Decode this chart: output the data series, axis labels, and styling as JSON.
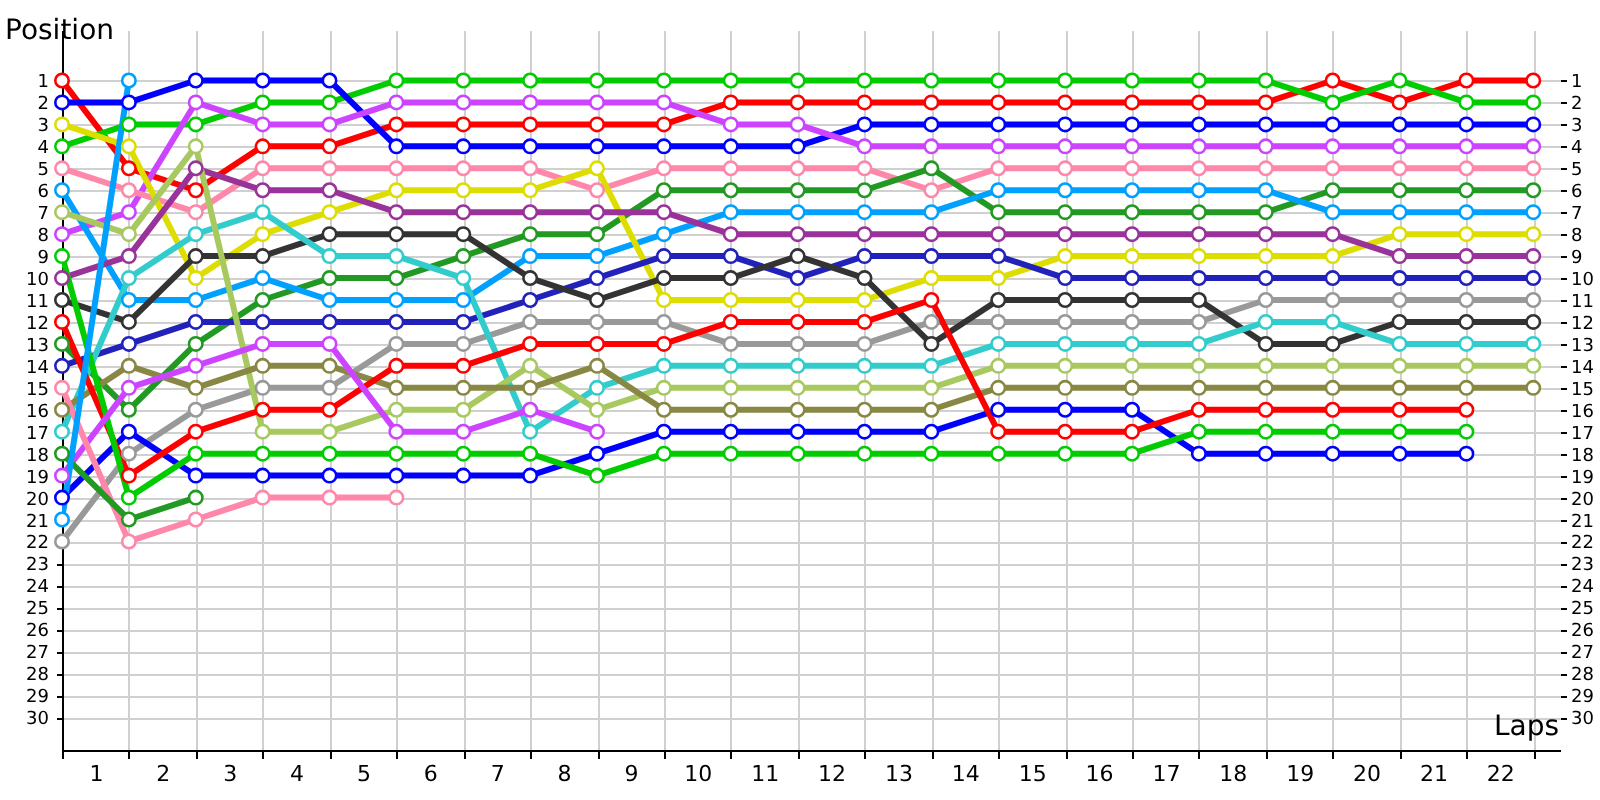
{
  "chart_data": {
    "type": "line",
    "xlabel": "Laps",
    "ylabel": "Position",
    "marker": "circle",
    "grid": true,
    "x": [
      0,
      1,
      2,
      3,
      4,
      5,
      6,
      7,
      8,
      9,
      10,
      11,
      12,
      13,
      14,
      15,
      16,
      17,
      18,
      19,
      20,
      21,
      22
    ],
    "xlim": [
      0,
      22.4
    ],
    "xticks": [
      {
        "value": 0,
        "label": null
      },
      {
        "value": 0.5,
        "label": "1"
      },
      {
        "value": 1,
        "label": null
      },
      {
        "value": 1.5,
        "label": "2"
      },
      {
        "value": 2,
        "label": null
      },
      {
        "value": 2.5,
        "label": "3"
      },
      {
        "value": 3,
        "label": null
      },
      {
        "value": 3.5,
        "label": "4"
      },
      {
        "value": 4,
        "label": null
      },
      {
        "value": 4.5,
        "label": "5"
      },
      {
        "value": 5,
        "label": null
      },
      {
        "value": 5.5,
        "label": "6"
      },
      {
        "value": 6,
        "label": null
      },
      {
        "value": 6.5,
        "label": "7"
      },
      {
        "value": 7,
        "label": null
      },
      {
        "value": 7.5,
        "label": "8"
      },
      {
        "value": 8,
        "label": null
      },
      {
        "value": 8.5,
        "label": "9"
      },
      {
        "value": 9,
        "label": null
      },
      {
        "value": 9.5,
        "label": "10"
      },
      {
        "value": 10,
        "label": null
      },
      {
        "value": 10.5,
        "label": "11"
      },
      {
        "value": 11,
        "label": null
      },
      {
        "value": 11.5,
        "label": "12"
      },
      {
        "value": 12,
        "label": null
      },
      {
        "value": 12.5,
        "label": "13"
      },
      {
        "value": 13,
        "label": null
      },
      {
        "value": 13.5,
        "label": "14"
      },
      {
        "value": 14,
        "label": null
      },
      {
        "value": 14.5,
        "label": "15"
      },
      {
        "value": 15,
        "label": null
      },
      {
        "value": 15.5,
        "label": "16"
      },
      {
        "value": 16,
        "label": null
      },
      {
        "value": 16.5,
        "label": "17"
      },
      {
        "value": 17,
        "label": null
      },
      {
        "value": 17.5,
        "label": "18"
      },
      {
        "value": 18,
        "label": null
      },
      {
        "value": 18.5,
        "label": "19"
      },
      {
        "value": 19,
        "label": null
      },
      {
        "value": 19.5,
        "label": "20"
      },
      {
        "value": 20,
        "label": null
      },
      {
        "value": 20.5,
        "label": "21"
      },
      {
        "value": 21,
        "label": null
      },
      {
        "value": 21.5,
        "label": "22"
      },
      {
        "value": 22,
        "label": null
      }
    ],
    "ylim": [
      31.5,
      -1.3
    ],
    "yticks": [
      1,
      2,
      3,
      4,
      5,
      6,
      7,
      8,
      9,
      10,
      11,
      12,
      13,
      14,
      15,
      16,
      17,
      18,
      19,
      20,
      21,
      22,
      23,
      24,
      25,
      26,
      27,
      28,
      29,
      30
    ],
    "y2lim": [
      31.5,
      -1.3
    ],
    "y2ticks": [
      1,
      2,
      3,
      4,
      5,
      6,
      7,
      8,
      9,
      10,
      11,
      12,
      13,
      14,
      15,
      16,
      17,
      18,
      19,
      20,
      21,
      22,
      23,
      24,
      25,
      26,
      27,
      28,
      29,
      30
    ],
    "series": [
      {
        "color": "#ff0000",
        "values": [
          1,
          5,
          6,
          4,
          4,
          3,
          3,
          3,
          3,
          3,
          2,
          2,
          2,
          2,
          2,
          2,
          2,
          2,
          2,
          1,
          2,
          1,
          1
        ]
      },
      {
        "color": "#00cc00",
        "values": [
          4,
          3,
          3,
          2,
          2,
          1,
          1,
          1,
          1,
          1,
          1,
          1,
          1,
          1,
          1,
          1,
          1,
          1,
          1,
          2,
          1,
          2,
          2
        ]
      },
      {
        "color": "#0000ff",
        "values": [
          2,
          2,
          1,
          1,
          1,
          4,
          4,
          4,
          4,
          4,
          4,
          4,
          3,
          3,
          3,
          3,
          3,
          3,
          3,
          3,
          3,
          3,
          3
        ]
      },
      {
        "color": "#cc44ff",
        "values": [
          8,
          7,
          2,
          3,
          3,
          2,
          2,
          2,
          2,
          2,
          3,
          3,
          4,
          4,
          4,
          4,
          4,
          4,
          4,
          4,
          4,
          4,
          4
        ]
      },
      {
        "color": "#ff88aa",
        "values": [
          5,
          6,
          7,
          5,
          5,
          5,
          5,
          5,
          6,
          5,
          5,
          5,
          5,
          6,
          5,
          5,
          5,
          5,
          5,
          5,
          5,
          5,
          5
        ]
      },
      {
        "color": "#229922",
        "values": [
          13,
          16,
          13,
          11,
          10,
          10,
          9,
          8,
          8,
          6,
          6,
          6,
          6,
          5,
          7,
          7,
          7,
          7,
          7,
          6,
          6,
          6,
          6
        ]
      },
      {
        "color": "#00a0ff",
        "values": [
          6,
          11,
          11,
          10,
          11,
          11,
          11,
          9,
          9,
          8,
          7,
          7,
          7,
          7,
          6,
          6,
          6,
          6,
          6,
          7,
          7,
          7,
          7
        ]
      },
      {
        "color": "#dddd00",
        "values": [
          3,
          4,
          10,
          8,
          7,
          6,
          6,
          6,
          5,
          11,
          11,
          11,
          11,
          10,
          10,
          9,
          9,
          9,
          9,
          9,
          8,
          8,
          8
        ]
      },
      {
        "color": "#993399",
        "values": [
          10,
          9,
          5,
          6,
          6,
          7,
          7,
          7,
          7,
          7,
          8,
          8,
          8,
          8,
          8,
          8,
          8,
          8,
          8,
          8,
          9,
          9,
          9
        ]
      },
      {
        "color": "#2222bb",
        "values": [
          14,
          13,
          12,
          12,
          12,
          12,
          12,
          11,
          10,
          9,
          9,
          10,
          9,
          9,
          9,
          10,
          10,
          10,
          10,
          10,
          10,
          10,
          10
        ]
      },
      {
        "color": "#999999",
        "values": [
          22,
          18,
          16,
          15,
          15,
          13,
          13,
          12,
          12,
          12,
          13,
          13,
          13,
          12,
          12,
          12,
          12,
          12,
          11,
          11,
          11,
          11,
          11
        ]
      },
      {
        "color": "#333333",
        "values": [
          11,
          12,
          9,
          9,
          8,
          8,
          8,
          10,
          11,
          10,
          10,
          9,
          10,
          13,
          11,
          11,
          11,
          11,
          13,
          13,
          12,
          12,
          12
        ]
      },
      {
        "color": "#33cccc",
        "values": [
          17,
          10,
          8,
          7,
          9,
          9,
          10,
          17,
          15,
          14,
          14,
          14,
          14,
          14,
          13,
          13,
          13,
          13,
          12,
          12,
          13,
          13,
          13
        ]
      },
      {
        "color": "#a8c860",
        "values": [
          7,
          8,
          4,
          17,
          17,
          16,
          16,
          14,
          16,
          15,
          15,
          15,
          15,
          15,
          14,
          14,
          14,
          14,
          14,
          14,
          14,
          14,
          14
        ]
      },
      {
        "color": "#888844",
        "values": [
          16,
          14,
          15,
          14,
          14,
          15,
          15,
          15,
          14,
          16,
          16,
          16,
          16,
          16,
          15,
          15,
          15,
          15,
          15,
          15,
          15,
          15,
          15
        ]
      },
      {
        "color": "#0000ff",
        "values": [
          20,
          17,
          19,
          19,
          19,
          19,
          19,
          19,
          18,
          17,
          17,
          17,
          17,
          17,
          16,
          16,
          16,
          18,
          18,
          18,
          18,
          18,
          null
        ]
      },
      {
        "color": "#ff0000",
        "values": [
          12,
          19,
          17,
          16,
          16,
          14,
          14,
          13,
          13,
          13,
          12,
          12,
          12,
          11,
          17,
          17,
          17,
          16,
          16,
          16,
          16,
          16,
          null
        ]
      },
      {
        "color": "#00cc00",
        "values": [
          9,
          20,
          18,
          18,
          18,
          18,
          18,
          18,
          19,
          18,
          18,
          18,
          18,
          18,
          18,
          18,
          18,
          17,
          17,
          17,
          17,
          17,
          null
        ]
      },
      {
        "color": "#cc44ff",
        "values": [
          19,
          15,
          14,
          13,
          13,
          17,
          17,
          16,
          17,
          null,
          null,
          null,
          null,
          null,
          null,
          null,
          null,
          null,
          null,
          null,
          null,
          null,
          null
        ]
      },
      {
        "color": "#ff88aa",
        "values": [
          15,
          22,
          21,
          20,
          20,
          20,
          null,
          null,
          null,
          null,
          null,
          null,
          null,
          null,
          null,
          null,
          null,
          null,
          null,
          null,
          null,
          null,
          null
        ]
      },
      {
        "color": "#229922",
        "values": [
          18,
          21,
          20,
          null,
          null,
          null,
          null,
          null,
          null,
          null,
          null,
          null,
          null,
          null,
          null,
          null,
          null,
          null,
          null,
          null,
          null,
          null,
          null
        ]
      },
      {
        "color": "#00a0ff",
        "values": [
          21,
          1,
          null,
          null,
          null,
          null,
          null,
          null,
          null,
          null,
          null,
          null,
          null,
          null,
          null,
          null,
          null,
          null,
          null,
          null,
          null,
          null,
          null
        ]
      }
    ]
  }
}
